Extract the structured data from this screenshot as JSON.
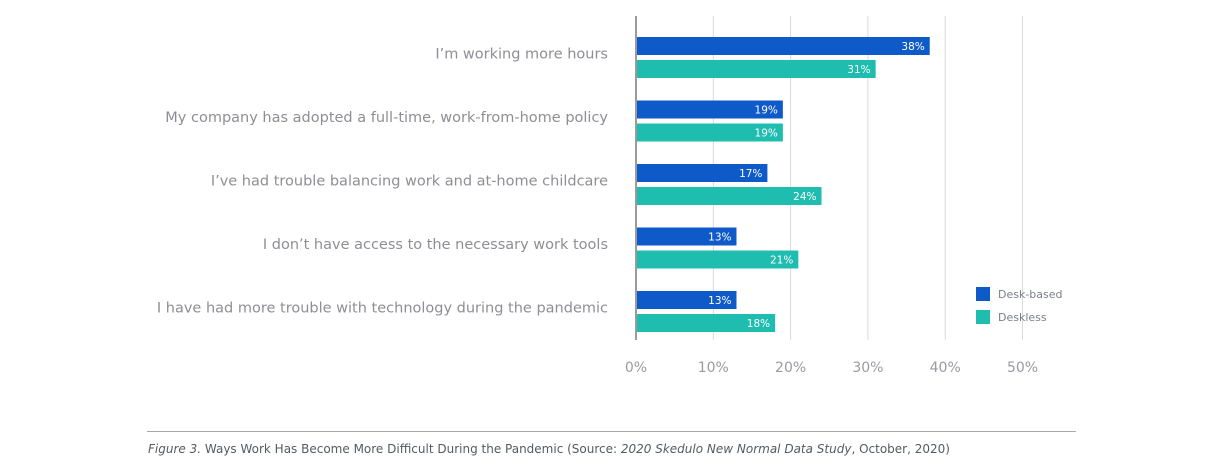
{
  "chart_data": {
    "type": "bar",
    "orientation": "horizontal",
    "categories": [
      "I’m working more hours",
      "My company has adopted a full-time, work-from-home policy",
      "I’ve had trouble balancing work and at-home childcare",
      "I don’t have access to the necessary work tools",
      "I have had more trouble with technology during the pandemic"
    ],
    "series": [
      {
        "name": "Desk-based",
        "color": "#0f5ac9",
        "values": [
          38,
          19,
          17,
          13,
          13
        ]
      },
      {
        "name": "Deskless",
        "color": "#1fbcb0",
        "values": [
          31,
          19,
          24,
          21,
          18
        ]
      }
    ],
    "data_labels": [
      [
        "38%",
        "19%",
        "17%",
        "13%",
        "13%"
      ],
      [
        "31%",
        "19%",
        "24%",
        "21%",
        "18%"
      ]
    ],
    "xlim": [
      0,
      50
    ],
    "x_ticks": [
      0,
      10,
      20,
      30,
      40,
      50
    ],
    "x_tick_labels": [
      "0%",
      "10%",
      "20%",
      "30%",
      "40%",
      "50%"
    ],
    "grid": "vertical",
    "legend_position": "right",
    "gridline_color": "#d9d9d9"
  },
  "caption": {
    "figure_label": "Figure 3.",
    "text_before": " Ways Work Has Become More Difficult During the Pandemic (Source: ",
    "source_title": "2020 Skedulo New Normal Data Study",
    "text_after": ", October, 2020)"
  }
}
